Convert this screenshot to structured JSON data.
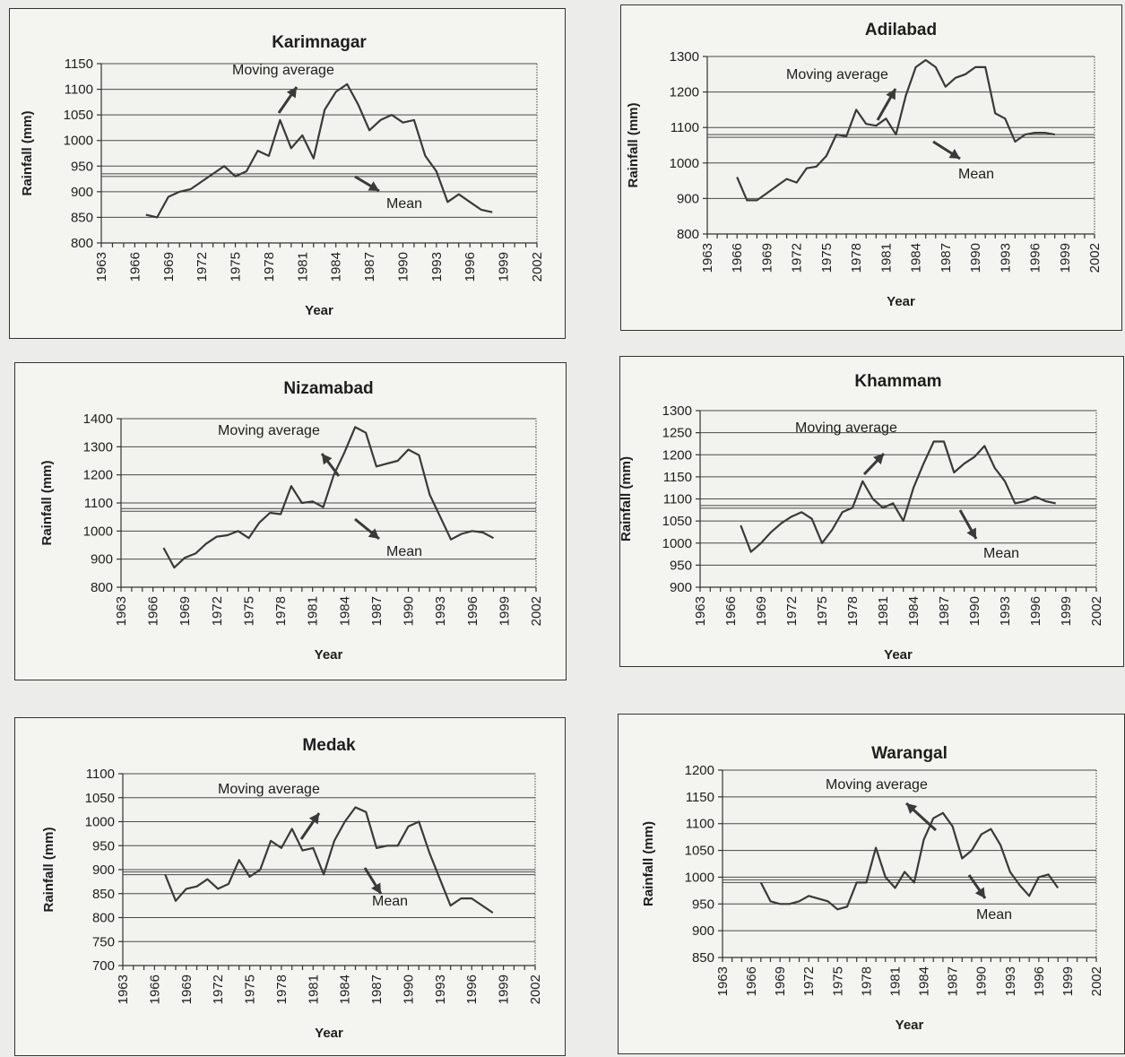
{
  "common": {
    "xlabel": "Year",
    "ylabel": "Rainfall (mm)",
    "annotations": {
      "moving_average": "Moving average",
      "mean": "Mean"
    },
    "colors": {
      "line": "#3a3a3a",
      "panel_bg": "#f4f4f1",
      "page_bg": "#ececea"
    }
  },
  "chart_data": [
    {
      "id": "karimnagar",
      "type": "line",
      "title": "Karimnagar",
      "xlabel": "Year",
      "ylabel": "Rainfall (mm)",
      "xlim": [
        1963,
        2002
      ],
      "x_ticks": [
        1963,
        1966,
        1969,
        1972,
        1975,
        1978,
        1981,
        1984,
        1987,
        1990,
        1993,
        1996,
        1999,
        2002
      ],
      "ylim": [
        800,
        1150
      ],
      "y_ticks": [
        800,
        850,
        900,
        950,
        1000,
        1050,
        1100,
        1150
      ],
      "mean": 935,
      "series": [
        {
          "x": [
            1967,
            1968,
            1969,
            1970,
            1971,
            1972,
            1973,
            1974,
            1975,
            1976,
            1977,
            1978,
            1979,
            1980,
            1981,
            1982,
            1983,
            1984,
            1985,
            1986,
            1987,
            1988,
            1989,
            1990,
            1991,
            1992,
            1993,
            1994,
            1995,
            1996,
            1997,
            1998
          ],
          "y": [
            855,
            850,
            890,
            900,
            905,
            920,
            935,
            950,
            930,
            940,
            980,
            970,
            1040,
            985,
            1010,
            965,
            1060,
            1095,
            1110,
            1070,
            1020,
            1040,
            1050,
            1035,
            1040,
            970,
            940,
            880,
            895,
            880,
            865,
            860
          ]
        }
      ]
    },
    {
      "id": "adilabad",
      "type": "line",
      "title": "Adilabad",
      "xlabel": "Year",
      "ylabel": "Rainfall (mm)",
      "xlim": [
        1963,
        2002
      ],
      "x_ticks": [
        1963,
        1966,
        1969,
        1972,
        1975,
        1978,
        1981,
        1984,
        1987,
        1990,
        1993,
        1996,
        1999,
        2002
      ],
      "ylim": [
        800,
        1300
      ],
      "y_ticks": [
        800,
        900,
        1000,
        1100,
        1200,
        1300
      ],
      "mean": 1080,
      "series": [
        {
          "x": [
            1966,
            1967,
            1968,
            1969,
            1970,
            1971,
            1972,
            1973,
            1974,
            1975,
            1976,
            1977,
            1978,
            1979,
            1980,
            1981,
            1982,
            1983,
            1984,
            1985,
            1986,
            1987,
            1988,
            1989,
            1990,
            1991,
            1992,
            1993,
            1994,
            1995,
            1996,
            1997,
            1998
          ],
          "y": [
            960,
            895,
            895,
            915,
            935,
            955,
            945,
            985,
            990,
            1020,
            1080,
            1075,
            1150,
            1110,
            1105,
            1125,
            1080,
            1190,
            1270,
            1290,
            1270,
            1215,
            1240,
            1250,
            1270,
            1270,
            1140,
            1125,
            1060,
            1080,
            1085,
            1085,
            1080
          ]
        }
      ]
    },
    {
      "id": "nizamabad",
      "type": "line",
      "title": "Nizamabad",
      "xlabel": "Year",
      "ylabel": "Rainfall (mm)",
      "xlim": [
        1963,
        2002
      ],
      "x_ticks": [
        1963,
        1966,
        1969,
        1972,
        1975,
        1978,
        1981,
        1984,
        1987,
        1990,
        1993,
        1996,
        1999,
        2002
      ],
      "ylim": [
        800,
        1400
      ],
      "y_ticks": [
        800,
        900,
        1000,
        1100,
        1200,
        1300,
        1400
      ],
      "mean": 1080,
      "series": [
        {
          "x": [
            1967,
            1968,
            1969,
            1970,
            1971,
            1972,
            1973,
            1974,
            1975,
            1976,
            1977,
            1978,
            1979,
            1980,
            1981,
            1982,
            1983,
            1984,
            1985,
            1986,
            1987,
            1988,
            1989,
            1990,
            1991,
            1992,
            1993,
            1994,
            1995,
            1996,
            1997,
            1998
          ],
          "y": [
            940,
            870,
            905,
            920,
            955,
            980,
            985,
            1000,
            975,
            1030,
            1065,
            1060,
            1160,
            1100,
            1105,
            1085,
            1200,
            1280,
            1370,
            1350,
            1230,
            1240,
            1250,
            1290,
            1270,
            1130,
            1050,
            970,
            990,
            1000,
            995,
            975
          ]
        }
      ]
    },
    {
      "id": "khammam",
      "type": "line",
      "title": "Khammam",
      "xlabel": "Year",
      "ylabel": "Rainfall (mm)",
      "xlim": [
        1963,
        2002
      ],
      "x_ticks": [
        1963,
        1966,
        1969,
        1972,
        1975,
        1978,
        1981,
        1984,
        1987,
        1990,
        1993,
        1996,
        1999,
        2002
      ],
      "ylim": [
        900,
        1300
      ],
      "y_ticks": [
        900,
        950,
        1000,
        1050,
        1100,
        1150,
        1200,
        1250,
        1300
      ],
      "mean": 1085,
      "series": [
        {
          "x": [
            1967,
            1968,
            1969,
            1970,
            1971,
            1972,
            1973,
            1974,
            1975,
            1976,
            1977,
            1978,
            1979,
            1980,
            1981,
            1982,
            1983,
            1984,
            1985,
            1986,
            1987,
            1988,
            1989,
            1990,
            1991,
            1992,
            1993,
            1994,
            1995,
            1996,
            1997,
            1998
          ],
          "y": [
            1040,
            980,
            1000,
            1025,
            1045,
            1060,
            1070,
            1055,
            1000,
            1030,
            1070,
            1080,
            1140,
            1100,
            1080,
            1090,
            1050,
            1125,
            1180,
            1230,
            1230,
            1160,
            1180,
            1195,
            1220,
            1170,
            1140,
            1090,
            1095,
            1105,
            1095,
            1090
          ]
        }
      ]
    },
    {
      "id": "medak",
      "type": "line",
      "title": "Medak",
      "xlabel": "Year",
      "ylabel": "Rainfall (mm)",
      "xlim": [
        1963,
        2002
      ],
      "x_ticks": [
        1963,
        1966,
        1969,
        1972,
        1975,
        1978,
        1981,
        1984,
        1987,
        1990,
        1993,
        1996,
        1999,
        2002
      ],
      "ylim": [
        700,
        1100
      ],
      "y_ticks": [
        700,
        750,
        800,
        850,
        900,
        950,
        1000,
        1050,
        1100
      ],
      "mean": 895,
      "series": [
        {
          "x": [
            1967,
            1968,
            1969,
            1970,
            1971,
            1972,
            1973,
            1974,
            1975,
            1976,
            1977,
            1978,
            1979,
            1980,
            1981,
            1982,
            1983,
            1984,
            1985,
            1986,
            1987,
            1988,
            1989,
            1990,
            1991,
            1992,
            1993,
            1994,
            1995,
            1996,
            1997,
            1998
          ],
          "y": [
            890,
            835,
            860,
            865,
            880,
            860,
            870,
            920,
            885,
            900,
            960,
            945,
            985,
            940,
            945,
            890,
            960,
            1000,
            1030,
            1020,
            945,
            950,
            950,
            990,
            1000,
            935,
            880,
            825,
            840,
            840,
            825,
            810
          ]
        }
      ]
    },
    {
      "id": "warangal",
      "type": "line",
      "title": "Warangal",
      "xlabel": "Year",
      "ylabel": "Rainfall (mm)",
      "xlim": [
        1963,
        2002
      ],
      "x_ticks": [
        1963,
        1966,
        1969,
        1972,
        1975,
        1978,
        1981,
        1984,
        1987,
        1990,
        1993,
        1996,
        1999,
        2002
      ],
      "ylim": [
        850,
        1200
      ],
      "y_ticks": [
        850,
        900,
        950,
        1000,
        1050,
        1100,
        1150,
        1200
      ],
      "mean": 995,
      "series": [
        {
          "x": [
            1967,
            1968,
            1969,
            1970,
            1971,
            1972,
            1973,
            1974,
            1975,
            1976,
            1977,
            1978,
            1979,
            1980,
            1981,
            1982,
            1983,
            1984,
            1985,
            1986,
            1987,
            1988,
            1989,
            1990,
            1991,
            1992,
            1993,
            1994,
            1995,
            1996,
            1997,
            1998
          ],
          "y": [
            990,
            955,
            950,
            950,
            955,
            965,
            960,
            955,
            940,
            945,
            990,
            990,
            1055,
            1000,
            980,
            1010,
            990,
            1070,
            1110,
            1120,
            1095,
            1035,
            1050,
            1080,
            1090,
            1060,
            1010,
            985,
            965,
            1000,
            1005,
            980
          ]
        }
      ]
    }
  ]
}
